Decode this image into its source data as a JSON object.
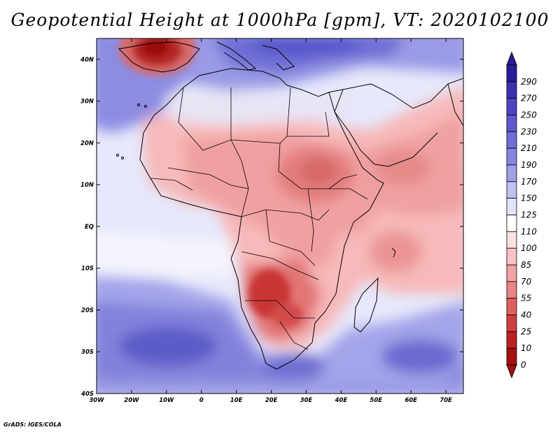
{
  "title": "Geopotential Height at 1000hPa [gpm], VT: 2020102100",
  "credit": "GrADS: IGES/COLA",
  "map": {
    "variable": "Geopotential Height",
    "level": "1000hPa",
    "units": "gpm",
    "valid_time": "2020102100",
    "lon_range": [
      -30,
      75
    ],
    "lat_range": [
      -40,
      45
    ],
    "x_ticks": [
      "30W",
      "20W",
      "10W",
      "0",
      "10E",
      "20E",
      "30E",
      "40E",
      "50E",
      "60E",
      "70E"
    ],
    "y_ticks": [
      "40N",
      "30N",
      "20N",
      "10N",
      "EQ",
      "10S",
      "20S",
      "30S",
      "40S"
    ]
  },
  "colorbar": {
    "labels": [
      "290",
      "270",
      "250",
      "230",
      "210",
      "190",
      "170",
      "150",
      "125",
      "110",
      "100",
      "85",
      "70",
      "55",
      "40",
      "25",
      "10",
      "0"
    ],
    "colors": [
      "#2a1d9a",
      "#3d30b0",
      "#4d44c2",
      "#5e58cc",
      "#6f6ed6",
      "#8686de",
      "#a0a0e8",
      "#c0c0f2",
      "#e2e4fa",
      "#ffffff",
      "#fde2e2",
      "#fac3c3",
      "#f3a3a3",
      "#eb8484",
      "#de6060",
      "#cf3f3f",
      "#bb2222",
      "#a50f0f"
    ]
  }
}
